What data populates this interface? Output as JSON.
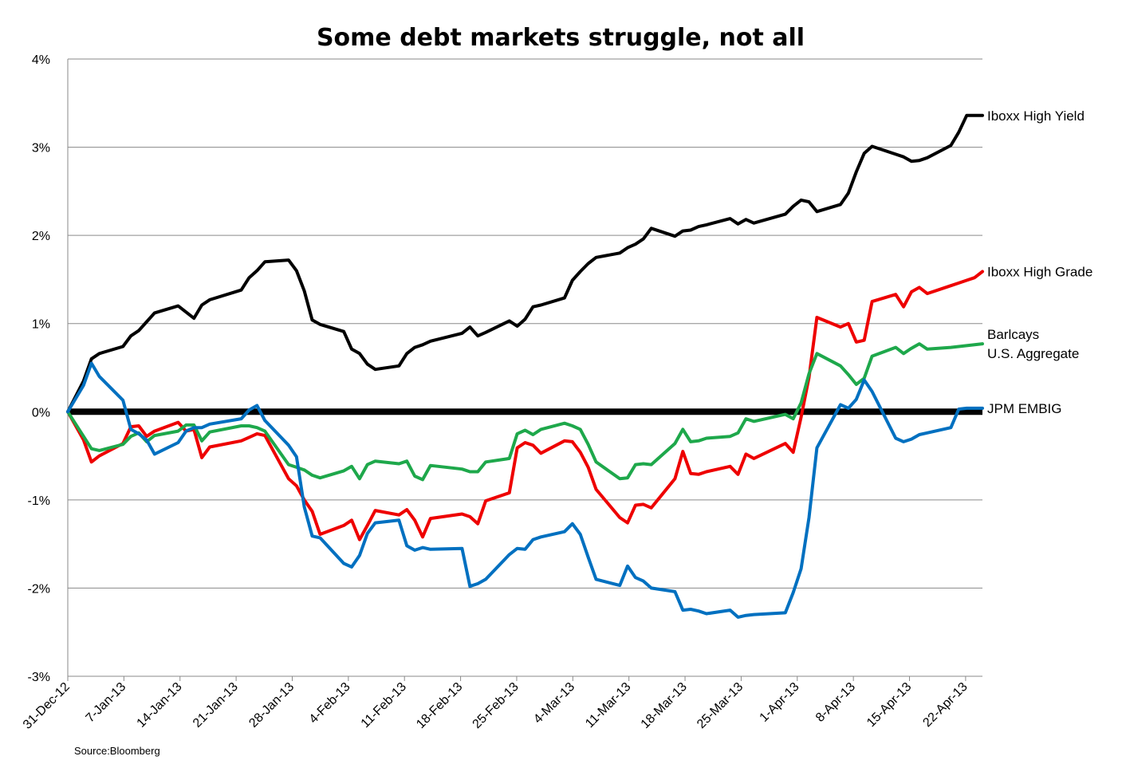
{
  "chart_data": {
    "type": "line",
    "title": "Some debt markets struggle, not all",
    "source": "Source:Bloomberg",
    "ylim": [
      -3,
      4
    ],
    "y_ticks": [
      -3,
      -2,
      -1,
      0,
      1,
      2,
      3,
      4
    ],
    "y_tick_labels": [
      "-3%",
      "-2%",
      "-1%",
      "0%",
      "1%",
      "2%",
      "3%",
      "4%"
    ],
    "x_tick_labels": [
      "31-Dec-12",
      "7-Jan-13",
      "14-Jan-13",
      "21-Jan-13",
      "28-Jan-13",
      "4-Feb-13",
      "11-Feb-13",
      "18-Feb-13",
      "25-Feb-13",
      "4-Mar-13",
      "11-Mar-13",
      "18-Mar-13",
      "25-Mar-13",
      "1-Apr-13",
      "8-Apr-13",
      "15-Apr-13",
      "22-Apr-13"
    ],
    "x_domain": [
      "2012-12-31",
      "2013-04-26"
    ],
    "grid": "horizontal",
    "zero_line_bold": true,
    "legend_placement": "right, labels at series ends",
    "series": [
      {
        "name": "Iboxx High Yield",
        "legend_lines": [
          "Iboxx High Yield"
        ],
        "color": "#000000",
        "x": [
          "2012-12-31",
          "2013-01-02",
          "2013-01-03",
          "2013-01-04",
          "2013-01-07",
          "2013-01-08",
          "2013-01-09",
          "2013-01-10",
          "2013-01-11",
          "2013-01-14",
          "2013-01-15",
          "2013-01-16",
          "2013-01-17",
          "2013-01-18",
          "2013-01-22",
          "2013-01-23",
          "2013-01-24",
          "2013-01-25",
          "2013-01-28",
          "2013-01-29",
          "2013-01-30",
          "2013-01-31",
          "2013-02-01",
          "2013-02-04",
          "2013-02-05",
          "2013-02-06",
          "2013-02-07",
          "2013-02-08",
          "2013-02-11",
          "2013-02-12",
          "2013-02-13",
          "2013-02-14",
          "2013-02-15",
          "2013-02-19",
          "2013-02-20",
          "2013-02-21",
          "2013-02-22",
          "2013-02-25",
          "2013-02-26",
          "2013-02-27",
          "2013-02-28",
          "2013-03-01",
          "2013-03-04",
          "2013-03-05",
          "2013-03-06",
          "2013-03-07",
          "2013-03-08",
          "2013-03-11",
          "2013-03-12",
          "2013-03-13",
          "2013-03-14",
          "2013-03-15",
          "2013-03-18",
          "2013-03-19",
          "2013-03-20",
          "2013-03-21",
          "2013-03-22",
          "2013-03-25",
          "2013-03-26",
          "2013-03-27",
          "2013-03-28",
          "2013-04-01",
          "2013-04-02",
          "2013-04-03",
          "2013-04-04",
          "2013-04-05",
          "2013-04-08",
          "2013-04-09",
          "2013-04-10",
          "2013-04-11",
          "2013-04-12",
          "2013-04-15",
          "2013-04-16",
          "2013-04-17",
          "2013-04-18",
          "2013-04-19",
          "2013-04-22",
          "2013-04-23",
          "2013-04-24",
          "2013-04-25",
          "2013-04-26"
        ],
        "values": [
          0.0,
          0.35,
          0.6,
          0.66,
          0.74,
          0.86,
          0.92,
          1.02,
          1.12,
          1.2,
          1.13,
          1.06,
          1.21,
          1.27,
          1.38,
          1.52,
          1.6,
          1.7,
          1.72,
          1.6,
          1.37,
          1.04,
          0.99,
          0.91,
          0.71,
          0.66,
          0.54,
          0.48,
          0.52,
          0.66,
          0.73,
          0.76,
          0.8,
          0.89,
          0.96,
          0.86,
          0.9,
          1.03,
          0.97,
          1.05,
          1.19,
          1.21,
          1.29,
          1.49,
          1.59,
          1.68,
          1.75,
          1.8,
          1.86,
          1.9,
          1.96,
          2.08,
          1.99,
          2.05,
          2.06,
          2.1,
          2.12,
          2.19,
          2.13,
          2.18,
          2.14,
          2.24,
          2.33,
          2.4,
          2.38,
          2.27,
          2.35,
          2.48,
          2.72,
          2.93,
          3.01,
          2.92,
          2.89,
          2.84,
          2.85,
          2.88,
          3.02,
          3.17,
          3.36,
          3.36,
          3.36
        ]
      },
      {
        "name": "Iboxx High Grade",
        "legend_lines": [
          "Iboxx High Grade"
        ],
        "color": "#ee0000",
        "x": [
          "2012-12-31",
          "2013-01-02",
          "2013-01-03",
          "2013-01-04",
          "2013-01-07",
          "2013-01-08",
          "2013-01-09",
          "2013-01-10",
          "2013-01-11",
          "2013-01-14",
          "2013-01-15",
          "2013-01-16",
          "2013-01-17",
          "2013-01-18",
          "2013-01-22",
          "2013-01-23",
          "2013-01-24",
          "2013-01-25",
          "2013-01-28",
          "2013-01-29",
          "2013-01-30",
          "2013-01-31",
          "2013-02-01",
          "2013-02-04",
          "2013-02-05",
          "2013-02-06",
          "2013-02-07",
          "2013-02-08",
          "2013-02-11",
          "2013-02-12",
          "2013-02-13",
          "2013-02-14",
          "2013-02-15",
          "2013-02-19",
          "2013-02-20",
          "2013-02-21",
          "2013-02-22",
          "2013-02-25",
          "2013-02-26",
          "2013-02-27",
          "2013-02-28",
          "2013-03-01",
          "2013-03-04",
          "2013-03-05",
          "2013-03-06",
          "2013-03-07",
          "2013-03-08",
          "2013-03-11",
          "2013-03-12",
          "2013-03-13",
          "2013-03-14",
          "2013-03-15",
          "2013-03-18",
          "2013-03-19",
          "2013-03-20",
          "2013-03-21",
          "2013-03-22",
          "2013-03-25",
          "2013-03-26",
          "2013-03-27",
          "2013-03-28",
          "2013-04-01",
          "2013-04-02",
          "2013-04-03",
          "2013-04-04",
          "2013-04-05",
          "2013-04-08",
          "2013-04-09",
          "2013-04-10",
          "2013-04-11",
          "2013-04-12",
          "2013-04-15",
          "2013-04-16",
          "2013-04-17",
          "2013-04-18",
          "2013-04-19",
          "2013-04-22",
          "2013-04-23",
          "2013-04-24",
          "2013-04-25",
          "2013-04-26"
        ],
        "values": [
          0.0,
          -0.32,
          -0.57,
          -0.5,
          -0.36,
          -0.17,
          -0.16,
          -0.28,
          -0.22,
          -0.12,
          -0.22,
          -0.2,
          -0.52,
          -0.4,
          -0.33,
          -0.29,
          -0.25,
          -0.27,
          -0.76,
          -0.84,
          -1.0,
          -1.13,
          -1.39,
          -1.29,
          -1.23,
          -1.45,
          -1.29,
          -1.12,
          -1.17,
          -1.11,
          -1.23,
          -1.42,
          -1.21,
          -1.16,
          -1.19,
          -1.27,
          -1.01,
          -0.92,
          -0.41,
          -0.35,
          -0.38,
          -0.47,
          -0.33,
          -0.34,
          -0.46,
          -0.63,
          -0.88,
          -1.2,
          -1.26,
          -1.06,
          -1.05,
          -1.09,
          -0.76,
          -0.45,
          -0.7,
          -0.71,
          -0.68,
          -0.62,
          -0.71,
          -0.48,
          -0.53,
          -0.36,
          -0.46,
          -0.06,
          0.39,
          1.07,
          0.96,
          1.0,
          0.79,
          0.81,
          1.25,
          1.33,
          1.19,
          1.36,
          1.41,
          1.34,
          1.43,
          1.46,
          1.49,
          1.52,
          1.59
        ]
      },
      {
        "name": "Barlcays U.S. Aggregate",
        "legend_lines": [
          "Barlcays",
          "U.S. Aggregate"
        ],
        "color": "#1ea84b",
        "x": [
          "2012-12-31",
          "2013-01-02",
          "2013-01-03",
          "2013-01-04",
          "2013-01-07",
          "2013-01-08",
          "2013-01-09",
          "2013-01-10",
          "2013-01-11",
          "2013-01-14",
          "2013-01-15",
          "2013-01-16",
          "2013-01-17",
          "2013-01-18",
          "2013-01-22",
          "2013-01-23",
          "2013-01-24",
          "2013-01-25",
          "2013-01-28",
          "2013-01-29",
          "2013-01-30",
          "2013-01-31",
          "2013-02-01",
          "2013-02-04",
          "2013-02-05",
          "2013-02-06",
          "2013-02-07",
          "2013-02-08",
          "2013-02-11",
          "2013-02-12",
          "2013-02-13",
          "2013-02-14",
          "2013-02-15",
          "2013-02-19",
          "2013-02-20",
          "2013-02-21",
          "2013-02-22",
          "2013-02-25",
          "2013-02-26",
          "2013-02-27",
          "2013-02-28",
          "2013-03-01",
          "2013-03-04",
          "2013-03-05",
          "2013-03-06",
          "2013-03-07",
          "2013-03-08",
          "2013-03-11",
          "2013-03-12",
          "2013-03-13",
          "2013-03-14",
          "2013-03-15",
          "2013-03-18",
          "2013-03-19",
          "2013-03-20",
          "2013-03-21",
          "2013-03-22",
          "2013-03-25",
          "2013-03-26",
          "2013-03-27",
          "2013-03-28",
          "2013-04-01",
          "2013-04-02",
          "2013-04-03",
          "2013-04-04",
          "2013-04-05",
          "2013-04-08",
          "2013-04-09",
          "2013-04-10",
          "2013-04-11",
          "2013-04-12",
          "2013-04-15",
          "2013-04-16",
          "2013-04-17",
          "2013-04-18",
          "2013-04-19",
          "2013-04-22",
          "2013-04-23",
          "2013-04-24",
          "2013-04-25",
          "2013-04-26"
        ],
        "values": [
          0.0,
          -0.28,
          -0.42,
          -0.44,
          -0.37,
          -0.28,
          -0.24,
          -0.34,
          -0.27,
          -0.22,
          -0.15,
          -0.15,
          -0.33,
          -0.23,
          -0.16,
          -0.16,
          -0.18,
          -0.22,
          -0.6,
          -0.63,
          -0.66,
          -0.72,
          -0.75,
          -0.67,
          -0.62,
          -0.76,
          -0.6,
          -0.56,
          -0.59,
          -0.56,
          -0.73,
          -0.77,
          -0.61,
          -0.65,
          -0.68,
          -0.68,
          -0.57,
          -0.53,
          -0.25,
          -0.21,
          -0.26,
          -0.2,
          -0.13,
          -0.16,
          -0.2,
          -0.37,
          -0.57,
          -0.76,
          -0.75,
          -0.6,
          -0.59,
          -0.6,
          -0.36,
          -0.2,
          -0.34,
          -0.33,
          -0.3,
          -0.28,
          -0.24,
          -0.08,
          -0.11,
          -0.03,
          -0.08,
          0.1,
          0.43,
          0.66,
          0.52,
          0.42,
          0.31,
          0.38,
          0.63,
          0.73,
          0.66,
          0.72,
          0.77,
          0.71,
          0.73,
          0.74,
          0.75,
          0.76,
          0.77
        ]
      },
      {
        "name": "JPM EMBIG",
        "legend_lines": [
          "JPM EMBIG"
        ],
        "color": "#0070c0",
        "x": [
          "2012-12-31",
          "2013-01-02",
          "2013-01-03",
          "2013-01-04",
          "2013-01-07",
          "2013-01-08",
          "2013-01-09",
          "2013-01-10",
          "2013-01-11",
          "2013-01-14",
          "2013-01-15",
          "2013-01-16",
          "2013-01-17",
          "2013-01-18",
          "2013-01-22",
          "2013-01-23",
          "2013-01-24",
          "2013-01-25",
          "2013-01-28",
          "2013-01-29",
          "2013-01-30",
          "2013-01-31",
          "2013-02-01",
          "2013-02-04",
          "2013-02-05",
          "2013-02-06",
          "2013-02-07",
          "2013-02-08",
          "2013-02-11",
          "2013-02-12",
          "2013-02-13",
          "2013-02-14",
          "2013-02-15",
          "2013-02-19",
          "2013-02-20",
          "2013-02-21",
          "2013-02-22",
          "2013-02-25",
          "2013-02-26",
          "2013-02-27",
          "2013-02-28",
          "2013-03-01",
          "2013-03-04",
          "2013-03-05",
          "2013-03-06",
          "2013-03-07",
          "2013-03-08",
          "2013-03-11",
          "2013-03-12",
          "2013-03-13",
          "2013-03-14",
          "2013-03-15",
          "2013-03-18",
          "2013-03-19",
          "2013-03-20",
          "2013-03-21",
          "2013-03-22",
          "2013-03-25",
          "2013-03-26",
          "2013-03-27",
          "2013-03-28",
          "2013-04-01",
          "2013-04-02",
          "2013-04-03",
          "2013-04-04",
          "2013-04-05",
          "2013-04-08",
          "2013-04-09",
          "2013-04-10",
          "2013-04-11",
          "2013-04-12",
          "2013-04-15",
          "2013-04-16",
          "2013-04-17",
          "2013-04-18",
          "2013-04-19",
          "2013-04-22",
          "2013-04-23",
          "2013-04-24",
          "2013-04-25",
          "2013-04-26"
        ],
        "values": [
          0.0,
          0.3,
          0.55,
          0.4,
          0.13,
          -0.2,
          -0.25,
          -0.32,
          -0.48,
          -0.35,
          -0.22,
          -0.18,
          -0.18,
          -0.14,
          -0.08,
          0.02,
          0.07,
          -0.1,
          -0.38,
          -0.51,
          -1.08,
          -1.41,
          -1.43,
          -1.72,
          -1.76,
          -1.63,
          -1.38,
          -1.26,
          -1.23,
          -1.52,
          -1.57,
          -1.54,
          -1.56,
          -1.55,
          -1.98,
          -1.95,
          -1.9,
          -1.62,
          -1.55,
          -1.56,
          -1.45,
          -1.42,
          -1.36,
          -1.27,
          -1.39,
          -1.65,
          -1.9,
          -1.97,
          -1.75,
          -1.88,
          -1.92,
          -2.0,
          -2.04,
          -2.25,
          -2.24,
          -2.26,
          -2.29,
          -2.25,
          -2.33,
          -2.31,
          -2.3,
          -2.28,
          -2.05,
          -1.78,
          -1.2,
          -0.41,
          0.08,
          0.04,
          0.14,
          0.36,
          0.23,
          -0.3,
          -0.34,
          -0.31,
          -0.26,
          -0.24,
          -0.18,
          0.03,
          0.04,
          0.04,
          0.04
        ]
      }
    ]
  }
}
